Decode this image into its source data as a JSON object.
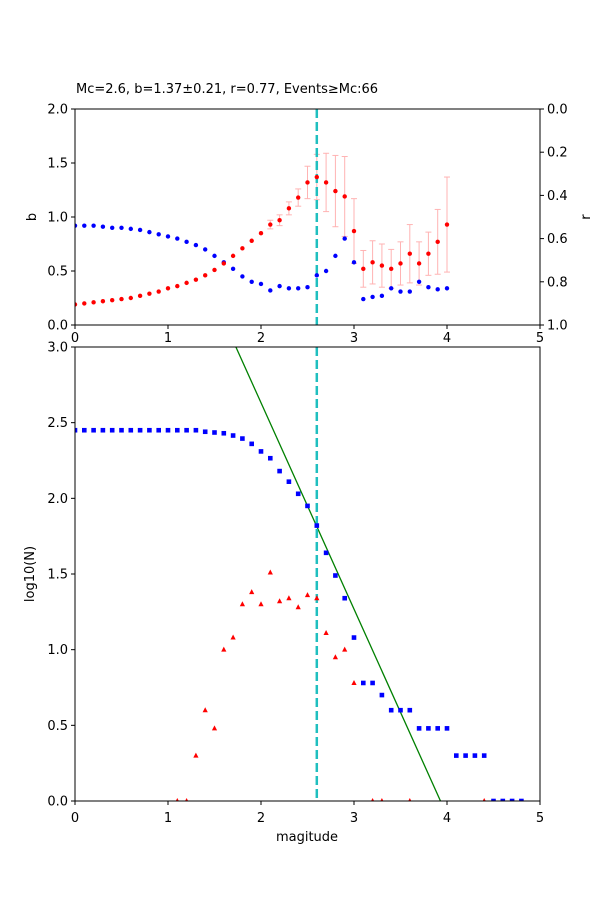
{
  "chart_data": [
    {
      "type": "scatter",
      "title": "Mc=2.6, b=1.37±0.21, r=0.77, Events≥Mc:66",
      "xlabel": "",
      "ylabel": "b",
      "y2label": "r",
      "xlim": [
        0,
        5
      ],
      "ylim": [
        0,
        2.0
      ],
      "y2lim": [
        1.0,
        0.0
      ],
      "xticks": [
        "0",
        "1",
        "2",
        "3",
        "4",
        "5"
      ],
      "yticks": [
        "0.0",
        "0.5",
        "1.0",
        "1.5",
        "2.0"
      ],
      "y2ticks": [
        "0.0",
        "0.2",
        "0.4",
        "0.6",
        "0.8",
        "1.0"
      ],
      "mc_line": 2.6,
      "colors": {
        "b": "#ff0000",
        "r": "#0000ff",
        "errorbar": "#ffb3b3",
        "mc": "#1fbfbf"
      },
      "series": [
        {
          "name": "b",
          "color": "#ff0000",
          "x": [
            0.0,
            0.1,
            0.2,
            0.3,
            0.4,
            0.5,
            0.6,
            0.7,
            0.8,
            0.9,
            1.0,
            1.1,
            1.2,
            1.3,
            1.4,
            1.5,
            1.6,
            1.7,
            1.8,
            1.9,
            2.0,
            2.1,
            2.2,
            2.3,
            2.4,
            2.5,
            2.6,
            2.7,
            2.8,
            2.9,
            3.0,
            3.1,
            3.2,
            3.3,
            3.4,
            3.5,
            3.6,
            3.7,
            3.8,
            3.9,
            4.0
          ],
          "values": [
            0.19,
            0.2,
            0.21,
            0.22,
            0.23,
            0.24,
            0.25,
            0.27,
            0.29,
            0.31,
            0.34,
            0.36,
            0.39,
            0.42,
            0.46,
            0.51,
            0.57,
            0.64,
            0.71,
            0.78,
            0.85,
            0.93,
            0.97,
            1.08,
            1.18,
            1.32,
            1.37,
            1.32,
            1.24,
            1.19,
            0.87,
            0.52,
            0.58,
            0.55,
            0.52,
            0.57,
            0.66,
            0.57,
            0.66,
            0.77,
            0.93
          ],
          "errors": [
            0,
            0,
            0,
            0,
            0,
            0,
            0,
            0,
            0,
            0,
            0,
            0,
            0,
            0,
            0,
            0,
            0,
            0,
            0,
            0,
            0,
            0.04,
            0.05,
            0.06,
            0.08,
            0.15,
            0.21,
            0.27,
            0.33,
            0.37,
            0.3,
            0.17,
            0.2,
            0.2,
            0.18,
            0.2,
            0.27,
            0.2,
            0.2,
            0.3,
            0.44
          ]
        },
        {
          "name": "r",
          "color": "#0000ff",
          "axis": "y2",
          "x": [
            0.0,
            0.1,
            0.2,
            0.3,
            0.4,
            0.5,
            0.6,
            0.7,
            0.8,
            0.9,
            1.0,
            1.1,
            1.2,
            1.3,
            1.4,
            1.5,
            1.6,
            1.7,
            1.8,
            1.9,
            2.0,
            2.1,
            2.2,
            2.3,
            2.4,
            2.5,
            2.6,
            2.7,
            2.8,
            2.9,
            3.0,
            3.1,
            3.2,
            3.3,
            3.4,
            3.5,
            3.6,
            3.7,
            3.8,
            3.9,
            4.0
          ],
          "values": [
            0.54,
            0.54,
            0.54,
            0.545,
            0.55,
            0.55,
            0.555,
            0.56,
            0.57,
            0.58,
            0.59,
            0.6,
            0.615,
            0.63,
            0.65,
            0.68,
            0.71,
            0.74,
            0.775,
            0.8,
            0.81,
            0.84,
            0.82,
            0.83,
            0.83,
            0.825,
            0.77,
            0.75,
            0.68,
            0.6,
            0.71,
            0.88,
            0.87,
            0.865,
            0.83,
            0.845,
            0.845,
            0.8,
            0.825,
            0.835,
            0.83
          ]
        }
      ]
    },
    {
      "type": "scatter",
      "title": "",
      "xlabel": "magitude",
      "ylabel": "log10(N)",
      "xlim": [
        0,
        5
      ],
      "ylim": [
        0,
        3.0
      ],
      "xticks": [
        "0",
        "1",
        "2",
        "3",
        "4",
        "5"
      ],
      "yticks": [
        "0.0",
        "0.5",
        "1.0",
        "1.5",
        "2.0",
        "2.5",
        "3.0"
      ],
      "mc_line": 2.6,
      "colors": {
        "cumulative": "#0000ff",
        "noncumulative": "#ff0000",
        "fit": "#008000",
        "mc": "#1fbfbf"
      },
      "series": [
        {
          "name": "cumulative",
          "marker": "square",
          "color": "#0000ff",
          "x": [
            0.0,
            0.1,
            0.2,
            0.3,
            0.4,
            0.5,
            0.6,
            0.7,
            0.8,
            0.9,
            1.0,
            1.1,
            1.2,
            1.3,
            1.4,
            1.5,
            1.6,
            1.7,
            1.8,
            1.9,
            2.0,
            2.1,
            2.2,
            2.3,
            2.4,
            2.5,
            2.6,
            2.7,
            2.8,
            2.9,
            3.0,
            3.1,
            3.2,
            3.3,
            3.4,
            3.5,
            3.6,
            3.7,
            3.8,
            3.9,
            4.0,
            4.1,
            4.2,
            4.3,
            4.4,
            4.5,
            4.6,
            4.7,
            4.8
          ],
          "values": [
            2.45,
            2.45,
            2.45,
            2.45,
            2.45,
            2.45,
            2.45,
            2.45,
            2.45,
            2.45,
            2.45,
            2.45,
            2.45,
            2.45,
            2.44,
            2.435,
            2.43,
            2.415,
            2.395,
            2.36,
            2.31,
            2.265,
            2.18,
            2.11,
            2.03,
            1.95,
            1.82,
            1.64,
            1.49,
            1.34,
            1.08,
            0.78,
            0.78,
            0.7,
            0.6,
            0.6,
            0.6,
            0.48,
            0.48,
            0.48,
            0.48,
            0.3,
            0.3,
            0.3,
            0.3,
            0.0,
            0.0,
            0.0,
            0.0
          ]
        },
        {
          "name": "noncumulative",
          "marker": "triangle",
          "color": "#ff0000",
          "x": [
            1.1,
            1.2,
            1.3,
            1.4,
            1.5,
            1.6,
            1.7,
            1.8,
            1.9,
            2.0,
            2.1,
            2.2,
            2.3,
            2.4,
            2.5,
            2.6,
            2.7,
            2.8,
            2.9,
            3.0,
            3.2,
            3.3,
            3.6,
            4.4
          ],
          "values": [
            0.0,
            0.0,
            0.3,
            0.6,
            0.48,
            1.0,
            1.08,
            1.3,
            1.38,
            1.3,
            1.51,
            1.32,
            1.34,
            1.28,
            1.36,
            1.34,
            1.11,
            0.95,
            1.0,
            0.78,
            0.0,
            0.0,
            0.0,
            0.0
          ]
        },
        {
          "name": "fit",
          "type": "line",
          "color": "#008000",
          "x": [
            1.73,
            3.93
          ],
          "values": [
            3.0,
            0.0
          ]
        }
      ]
    }
  ]
}
